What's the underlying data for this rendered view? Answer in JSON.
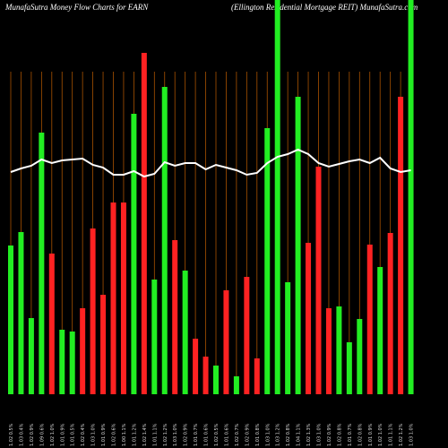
{
  "chart_data": {
    "type": "bar",
    "title": "MunafaSutra  Money Flow  Charts for EARN",
    "subtitle": "(Ellington  Residential Mortgage   REIT)  MunafaSutra.com",
    "categories": [
      "1.02 0.5%",
      "1.03 0.4%",
      "1.02 0.9%",
      "1.09 0.6%",
      "1.02 1.0%",
      "1.01 0.9%",
      "1.01 0.5%",
      "1.02 0.4%",
      "1.03 1.0%",
      "1.01 0.9%",
      "1.02 0.6%",
      "1.00 1.1%",
      "1.01 1.2%",
      "1.02 1.4%",
      "1.01 1.1%",
      "1.02 1.2%",
      "1.03 1.0%",
      "1.02 0.9%",
      "1.01 0.7%",
      "1.01 0.6%",
      "1.02 0.5%",
      "1.01 0.6%",
      "1.02 0.7%",
      "1.02 0.9%",
      "1.01 0.8%",
      "1.03 1.0%",
      "1.03 1.2%",
      "1.02 0.8%",
      "1.04 1.1%",
      "1.02 1.3%",
      "1.03 1.0%",
      "1.02 0.9%",
      "1.02 0.8%",
      "1.01 0.7%",
      "1.02 0.8%",
      "1.01 0.9%",
      "1.02 1.0%",
      "1.01 1.1%",
      "1.02 1.2%",
      "1.03 1.0%"
    ],
    "values": [
      166,
      181,
      85,
      292,
      157,
      72,
      70,
      96,
      185,
      111,
      214,
      214,
      313,
      381,
      128,
      343,
      172,
      138,
      62,
      42,
      32,
      116,
      20,
      131,
      40,
      297,
      440,
      125,
      332,
      169,
      254,
      96,
      98,
      58,
      84,
      167,
      142,
      180,
      332,
      440
    ],
    "colors": [
      "#22ee22",
      "#22ee22",
      "#22ee22",
      "#22ee22",
      "#ff2222",
      "#22ee22",
      "#22ee22",
      "#ff2222",
      "#ff2222",
      "#ff2222",
      "#ff2222",
      "#ff2222",
      "#22ee22",
      "#ff2222",
      "#22ee22",
      "#22ee22",
      "#ff2222",
      "#22ee22",
      "#ff2222",
      "#ff2222",
      "#22ee22",
      "#ff2222",
      "#22ee22",
      "#ff2222",
      "#ff2222",
      "#22ee22",
      "#22ee22",
      "#22ee22",
      "#22ee22",
      "#ff2222",
      "#ff2222",
      "#ff2222",
      "#22ee22",
      "#22ee22",
      "#22ee22",
      "#ff2222",
      "#22ee22",
      "#ff2222",
      "#ff2222",
      "#22ee22"
    ],
    "line_values": [
      248,
      252,
      255,
      262,
      258,
      261,
      262,
      263,
      256,
      253,
      245,
      245,
      249,
      243,
      246,
      259,
      255,
      258,
      258,
      251,
      256,
      253,
      250,
      245,
      247,
      258,
      265,
      268,
      273,
      268,
      258,
      254,
      257,
      260,
      262,
      258,
      264,
      252,
      248,
      250
    ],
    "line_color": "#ffffff"
  }
}
